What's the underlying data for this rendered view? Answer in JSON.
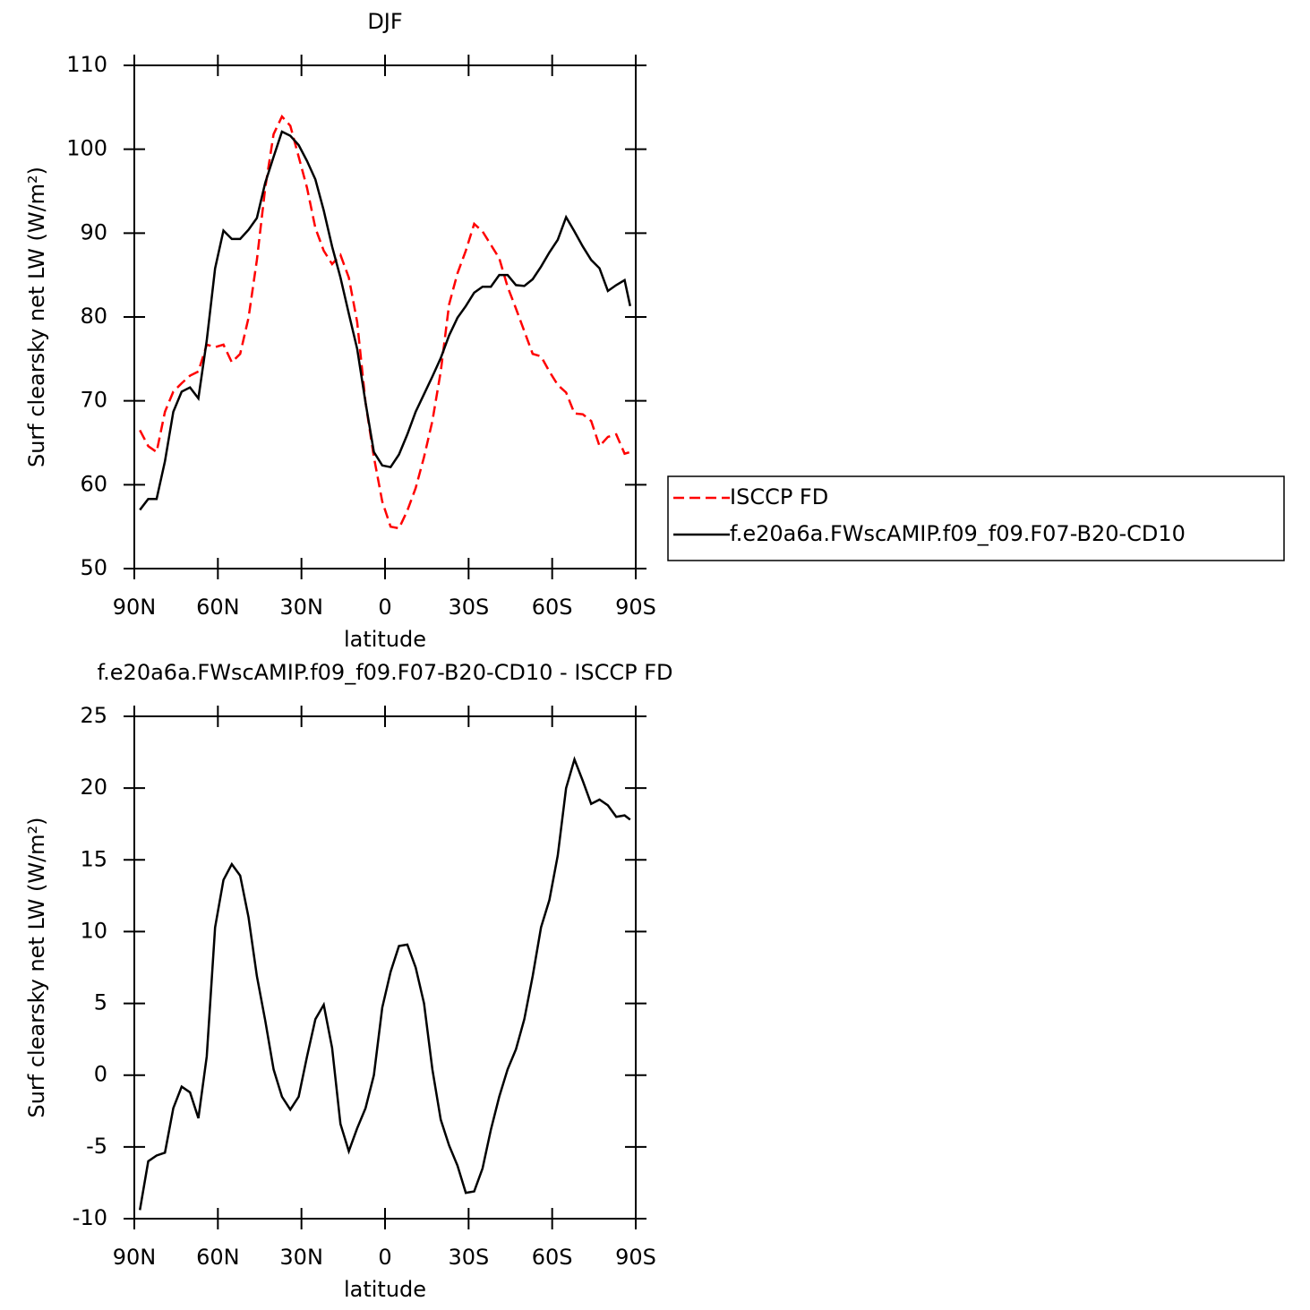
{
  "chart_data": [
    {
      "type": "line",
      "title": "DJF",
      "x_label": "latitude",
      "y_label": "Surf clearsky net LW (W/m²)",
      "x": [
        88,
        85,
        82,
        79,
        76,
        73,
        70,
        67,
        64,
        61,
        58,
        55,
        52,
        49,
        46,
        43,
        40,
        37,
        34,
        31,
        28,
        25,
        22,
        19,
        16,
        13,
        10,
        7,
        4,
        1,
        -2,
        -5,
        -8,
        -11,
        -14,
        -17,
        -20,
        -23,
        -26,
        -29,
        -32,
        -35,
        -38,
        -41,
        -44,
        -47,
        -50,
        -53,
        -56,
        -59,
        -62,
        -65,
        -68,
        -71,
        -74,
        -77,
        -80,
        -83,
        -86,
        -88
      ],
      "xlim": [
        90,
        -90
      ],
      "xticks": [
        {
          "value": 90,
          "label": "90N"
        },
        {
          "value": 60,
          "label": "60N"
        },
        {
          "value": 30,
          "label": "30N"
        },
        0,
        {
          "value": -30,
          "label": "30S"
        },
        {
          "value": -60,
          "label": "60S"
        },
        {
          "value": -90,
          "label": "90S"
        }
      ],
      "ylim": [
        50,
        110
      ],
      "yticks": [
        50,
        60,
        70,
        80,
        90,
        100,
        110
      ],
      "legend": "right",
      "series": [
        {
          "name": "ISCCP FD",
          "color": "#ff0000",
          "dash": true,
          "values": [
            66.5,
            64.6,
            63.9,
            68.7,
            71.1,
            72.1,
            73.0,
            73.5,
            76.7,
            76.4,
            76.7,
            74.6,
            75.6,
            79.9,
            86.8,
            95.4,
            101.8,
            103.9,
            102.8,
            99.1,
            95.4,
            90.6,
            87.9,
            86.3,
            87.4,
            84.7,
            79.4,
            69.8,
            63.3,
            58.0,
            55.0,
            54.8,
            56.9,
            59.6,
            63.3,
            67.6,
            73.5,
            81.5,
            85.2,
            87.9,
            91.1,
            90.2,
            88.6,
            87.0,
            83.6,
            81.0,
            78.3,
            75.6,
            75.3,
            73.5,
            71.9,
            71.0,
            68.5,
            68.4,
            67.6,
            64.6,
            65.7,
            66.0,
            63.7,
            63.9
          ]
        },
        {
          "name": "f.e20a6a.FWscAMIP.f09_f09.F07-B20-CD10",
          "color": "#000000",
          "dash": false,
          "values": [
            57.0,
            58.3,
            58.3,
            62.8,
            68.7,
            71.1,
            71.6,
            70.3,
            77.2,
            85.8,
            90.3,
            89.3,
            89.3,
            90.4,
            91.8,
            96.0,
            99.1,
            102.1,
            101.6,
            100.5,
            98.6,
            96.4,
            92.7,
            88.4,
            84.7,
            80.4,
            76.2,
            69.8,
            63.9,
            62.3,
            62.1,
            63.6,
            66.0,
            68.7,
            70.8,
            72.9,
            75.1,
            77.8,
            79.9,
            81.3,
            82.9,
            83.6,
            83.6,
            85.0,
            85.0,
            83.8,
            83.7,
            84.5,
            86.0,
            87.7,
            89.2,
            91.9,
            90.2,
            88.4,
            86.8,
            85.8,
            83.1,
            83.8,
            84.4,
            81.3
          ]
        }
      ]
    },
    {
      "type": "line",
      "title": "f.e20a6a.FWscAMIP.f09_f09.F07-B20-CD10 - ISCCP FD",
      "x_label": "latitude",
      "y_label": "Surf clearsky net LW (W/m²)",
      "x": [
        88,
        85,
        82,
        79,
        76,
        73,
        70,
        67,
        64,
        61,
        58,
        55,
        52,
        49,
        46,
        43,
        40,
        37,
        34,
        31,
        28,
        25,
        22,
        19,
        16,
        13,
        10,
        7,
        4,
        1,
        -2,
        -5,
        -8,
        -11,
        -14,
        -17,
        -20,
        -23,
        -26,
        -29,
        -32,
        -35,
        -38,
        -41,
        -44,
        -47,
        -50,
        -53,
        -56,
        -59,
        -62,
        -65,
        -68,
        -71,
        -74,
        -77,
        -80,
        -83,
        -86,
        -88
      ],
      "xlim": [
        90,
        -90
      ],
      "xticks": [
        {
          "value": 90,
          "label": "90N"
        },
        {
          "value": 60,
          "label": "60N"
        },
        {
          "value": 30,
          "label": "30N"
        },
        0,
        {
          "value": -30,
          "label": "30S"
        },
        {
          "value": -60,
          "label": "60S"
        },
        {
          "value": -90,
          "label": "90S"
        }
      ],
      "ylim": [
        -10,
        25
      ],
      "yticks": [
        -10,
        -5,
        0,
        5,
        10,
        15,
        20,
        25
      ],
      "series": [
        {
          "color": "#000000",
          "values": [
            -9.4,
            -6.0,
            -5.6,
            -5.4,
            -2.3,
            -0.8,
            -1.2,
            -3.0,
            1.3,
            10.3,
            13.6,
            14.7,
            13.9,
            11.0,
            6.9,
            3.8,
            0.4,
            -1.5,
            -2.4,
            -1.5,
            1.3,
            3.9,
            4.9,
            1.9,
            -3.4,
            -5.3,
            -3.7,
            -2.3,
            0,
            4.7,
            7.2,
            9.0,
            9.1,
            7.5,
            5.0,
            0.4,
            -3.1,
            -4.9,
            -6.3,
            -8.2,
            -8.1,
            -6.5,
            -3.8,
            -1.5,
            0.4,
            1.8,
            3.9,
            6.9,
            10.3,
            12.2,
            15.3,
            20.0,
            22.0,
            20.5,
            18.9,
            19.2,
            18.8,
            18.0,
            18.1,
            17.8
          ]
        }
      ]
    }
  ]
}
